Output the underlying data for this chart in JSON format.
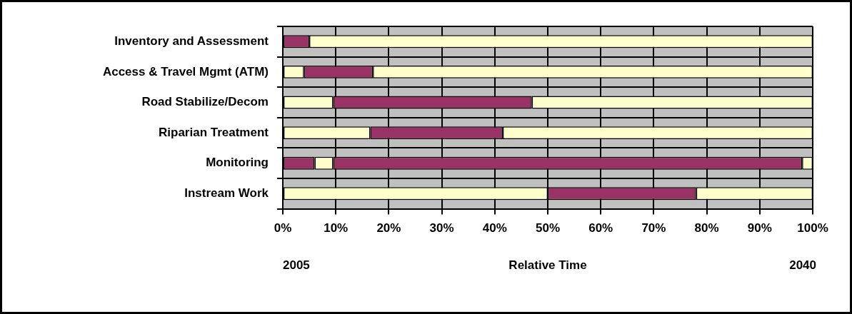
{
  "chart_data": {
    "type": "bar",
    "orientation": "horizontal",
    "stacked": true,
    "categories": [
      "Inventory and Assessment",
      "Access & Travel Mgmt (ATM)",
      "Road Stabilize/Decom",
      "Riparian Treatment",
      "Monitoring",
      "Instream Work"
    ],
    "series": [
      {
        "colors": [
          "#993366",
          "#ffffcc",
          "#ffffcc",
          "#ffffcc",
          "#993366",
          "#ffffcc"
        ],
        "values": [
          5,
          4,
          9.5,
          16.5,
          6,
          50
        ]
      },
      {
        "colors": [
          "#ffffcc",
          "#993366",
          "#993366",
          "#993366",
          "#ffffcc",
          "#993366"
        ],
        "values": [
          95,
          13,
          37.5,
          25,
          3.5,
          28
        ]
      },
      {
        "colors": [
          "#ffffcc",
          "#ffffcc",
          "#ffffcc",
          "#ffffcc",
          "#993366",
          "#ffffcc"
        ],
        "values": [
          null,
          83,
          53,
          58.5,
          88.5,
          22
        ]
      },
      {
        "colors": [
          "#ffffcc",
          "#ffffcc",
          "#ffffcc",
          "#ffffcc",
          "#ffffcc",
          "#ffffcc"
        ],
        "values": [
          null,
          null,
          null,
          null,
          2,
          null
        ]
      }
    ],
    "xlim": [
      0,
      100
    ],
    "xticks": [
      {
        "value": 0,
        "label": "0%"
      },
      {
        "value": 10,
        "label": "10%"
      },
      {
        "value": 20,
        "label": "20%"
      },
      {
        "value": 30,
        "label": "30%"
      },
      {
        "value": 40,
        "label": "40%"
      },
      {
        "value": 50,
        "label": "50%"
      },
      {
        "value": 60,
        "label": "60%"
      },
      {
        "value": 70,
        "label": "70%"
      },
      {
        "value": 80,
        "label": "80%"
      },
      {
        "value": 90,
        "label": "90%"
      },
      {
        "value": 100,
        "label": "100%"
      }
    ],
    "xlabel": "Relative Time",
    "annotations": [
      "2005",
      "2040"
    ],
    "grid": true
  }
}
